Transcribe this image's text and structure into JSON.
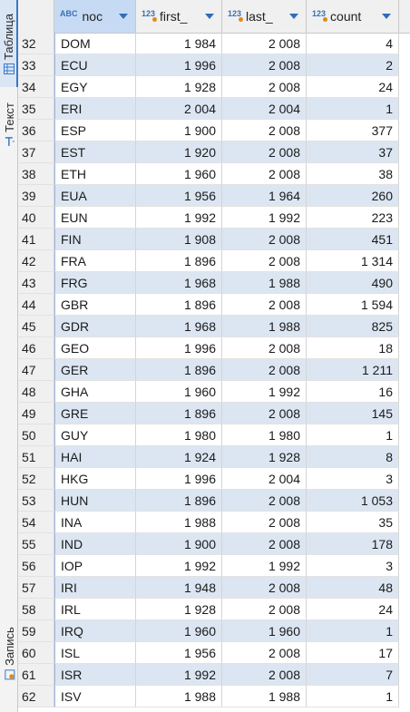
{
  "sidebar": {
    "tabs": [
      {
        "label": "Таблица",
        "icon": "grid-icon",
        "active": true
      },
      {
        "label": "Текст",
        "icon": "text-icon",
        "active": false
      },
      {
        "label": "Запись",
        "icon": "record-icon",
        "active": false
      }
    ]
  },
  "columns": [
    {
      "type": "ABC",
      "label": "noc"
    },
    {
      "type": "123",
      "label": "first_"
    },
    {
      "type": "123",
      "label": "last_"
    },
    {
      "type": "123",
      "label": "count"
    }
  ],
  "rows": [
    {
      "n": "32",
      "noc": "DOM",
      "first": "1 984",
      "last": "2 008",
      "count": "4"
    },
    {
      "n": "33",
      "noc": "ECU",
      "first": "1 996",
      "last": "2 008",
      "count": "2"
    },
    {
      "n": "34",
      "noc": "EGY",
      "first": "1 928",
      "last": "2 008",
      "count": "24"
    },
    {
      "n": "35",
      "noc": "ERI",
      "first": "2 004",
      "last": "2 004",
      "count": "1"
    },
    {
      "n": "36",
      "noc": "ESP",
      "first": "1 900",
      "last": "2 008",
      "count": "377"
    },
    {
      "n": "37",
      "noc": "EST",
      "first": "1 920",
      "last": "2 008",
      "count": "37"
    },
    {
      "n": "38",
      "noc": "ETH",
      "first": "1 960",
      "last": "2 008",
      "count": "38"
    },
    {
      "n": "39",
      "noc": "EUA",
      "first": "1 956",
      "last": "1 964",
      "count": "260"
    },
    {
      "n": "40",
      "noc": "EUN",
      "first": "1 992",
      "last": "1 992",
      "count": "223"
    },
    {
      "n": "41",
      "noc": "FIN",
      "first": "1 908",
      "last": "2 008",
      "count": "451"
    },
    {
      "n": "42",
      "noc": "FRA",
      "first": "1 896",
      "last": "2 008",
      "count": "1 314"
    },
    {
      "n": "43",
      "noc": "FRG",
      "first": "1 968",
      "last": "1 988",
      "count": "490"
    },
    {
      "n": "44",
      "noc": "GBR",
      "first": "1 896",
      "last": "2 008",
      "count": "1 594"
    },
    {
      "n": "45",
      "noc": "GDR",
      "first": "1 968",
      "last": "1 988",
      "count": "825"
    },
    {
      "n": "46",
      "noc": "GEO",
      "first": "1 996",
      "last": "2 008",
      "count": "18"
    },
    {
      "n": "47",
      "noc": "GER",
      "first": "1 896",
      "last": "2 008",
      "count": "1 211"
    },
    {
      "n": "48",
      "noc": "GHA",
      "first": "1 960",
      "last": "1 992",
      "count": "16"
    },
    {
      "n": "49",
      "noc": "GRE",
      "first": "1 896",
      "last": "2 008",
      "count": "145"
    },
    {
      "n": "50",
      "noc": "GUY",
      "first": "1 980",
      "last": "1 980",
      "count": "1"
    },
    {
      "n": "51",
      "noc": "HAI",
      "first": "1 924",
      "last": "1 928",
      "count": "8"
    },
    {
      "n": "52",
      "noc": "HKG",
      "first": "1 996",
      "last": "2 004",
      "count": "3"
    },
    {
      "n": "53",
      "noc": "HUN",
      "first": "1 896",
      "last": "2 008",
      "count": "1 053"
    },
    {
      "n": "54",
      "noc": "INA",
      "first": "1 988",
      "last": "2 008",
      "count": "35"
    },
    {
      "n": "55",
      "noc": "IND",
      "first": "1 900",
      "last": "2 008",
      "count": "178"
    },
    {
      "n": "56",
      "noc": "IOP",
      "first": "1 992",
      "last": "1 992",
      "count": "3"
    },
    {
      "n": "57",
      "noc": "IRI",
      "first": "1 948",
      "last": "2 008",
      "count": "48"
    },
    {
      "n": "58",
      "noc": "IRL",
      "first": "1 928",
      "last": "2 008",
      "count": "24"
    },
    {
      "n": "59",
      "noc": "IRQ",
      "first": "1 960",
      "last": "1 960",
      "count": "1"
    },
    {
      "n": "60",
      "noc": "ISL",
      "first": "1 956",
      "last": "2 008",
      "count": "17"
    },
    {
      "n": "61",
      "noc": "ISR",
      "first": "1 992",
      "last": "2 008",
      "count": "7"
    },
    {
      "n": "62",
      "noc": "ISV",
      "first": "1 988",
      "last": "1 988",
      "count": "1"
    }
  ]
}
